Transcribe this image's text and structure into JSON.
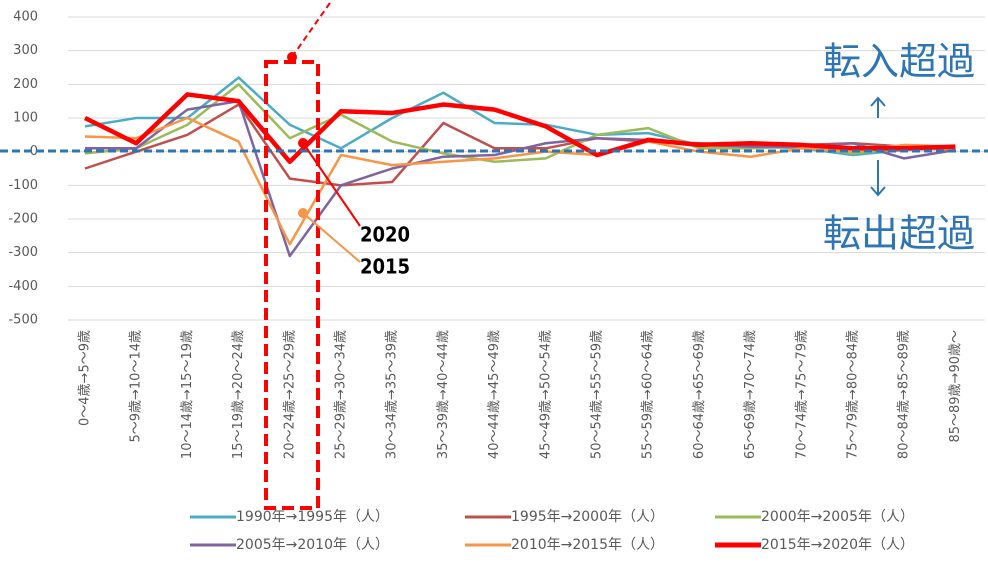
{
  "chart_data": {
    "type": "line",
    "categories": [
      "0～4歳→5～9歳",
      "5～9歳→10～14歳",
      "10～14歳→15～19歳",
      "15～19歳→20～24歳",
      "20～24歳→25～29歳",
      "25～29歳→30～34歳",
      "30～34歳→35～39歳",
      "35～39歳→40～44歳",
      "40～44歳→45～49歳",
      "45～49歳→50～54歳",
      "50～54歳→55～59歳",
      "55～59歳→60～64歳",
      "60～64歳→65～69歳",
      "65～69歳→70～74歳",
      "70～74歳→75～79歳",
      "75～79歳→80～84歳",
      "80～84歳→85～89歳",
      "85～89歳→90歳～"
    ],
    "series": [
      {
        "name": "1990年→1995年（人）",
        "color": "#4bacc6",
        "values": [
          75,
          100,
          100,
          220,
          80,
          10,
          100,
          175,
          85,
          80,
          50,
          55,
          20,
          15,
          10,
          -10,
          5,
          10
        ]
      },
      {
        "name": "1995年→2000年（人）",
        "color": "#c0504d",
        "values": [
          -50,
          0,
          50,
          140,
          -80,
          -100,
          -90,
          85,
          10,
          10,
          40,
          30,
          25,
          20,
          20,
          25,
          15,
          10
        ]
      },
      {
        "name": "2000年→2005年（人）",
        "color": "#9bbb59",
        "values": [
          -5,
          10,
          80,
          200,
          40,
          110,
          30,
          -5,
          -30,
          -20,
          50,
          70,
          10,
          10,
          15,
          -5,
          10,
          5
        ]
      },
      {
        "name": "2005年→2010年（人）",
        "color": "#8064a2",
        "values": [
          10,
          10,
          125,
          150,
          -310,
          -100,
          -50,
          -15,
          -10,
          25,
          40,
          35,
          20,
          15,
          15,
          25,
          -20,
          5
        ]
      },
      {
        "name": "2010年→2015年（人）",
        "color": "#f79646",
        "values": [
          45,
          40,
          100,
          30,
          -275,
          -10,
          -40,
          -30,
          -20,
          0,
          -10,
          30,
          0,
          -15,
          10,
          0,
          20,
          15
        ]
      },
      {
        "name": "2015年→2020年（人）",
        "color": "#ff0000",
        "values": [
          100,
          25,
          170,
          150,
          -30,
          120,
          115,
          140,
          125,
          75,
          -10,
          35,
          20,
          25,
          20,
          10,
          10,
          15
        ]
      }
    ],
    "ylim": [
      -500,
      400
    ],
    "yticks": [
      -500,
      -400,
      -300,
      -200,
      -100,
      0,
      100,
      200,
      300,
      400
    ],
    "grid": true,
    "annotations": [
      "転入超過",
      "転出超過",
      "2020",
      "2015"
    ]
  }
}
